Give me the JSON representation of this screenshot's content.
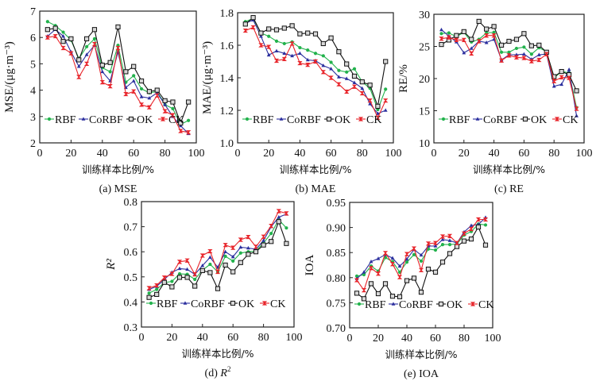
{
  "series_names": [
    "RBF",
    "CoRBF",
    "OK",
    "CK"
  ],
  "series_colors": {
    "RBF": "#22b24c",
    "CoRBF": "#2b2f9e",
    "OK": "#111111",
    "CK": "#e8252b"
  },
  "chart_data": [
    {
      "id": "mse",
      "type": "line",
      "caption_prefix": "(a) ",
      "caption_main": "MSE",
      "caption_italic": false,
      "caption_sup": "",
      "title": "(a) MSE",
      "xlabel": "训练样本比例/%",
      "ylabel": "MSE/(μg·m⁻³)",
      "xlim": [
        0,
        100
      ],
      "ylim": [
        2,
        7
      ],
      "xticks": [
        0,
        20,
        40,
        60,
        80,
        100
      ],
      "yticks": [
        2,
        3,
        4,
        5,
        6,
        7
      ],
      "ytick_labels": [
        "2",
        "3",
        "4",
        "5",
        "6",
        "7"
      ],
      "legend_position": "bottom-left",
      "x": [
        5,
        10,
        15,
        20,
        25,
        30,
        35,
        40,
        45,
        50,
        55,
        60,
        65,
        70,
        75,
        80,
        85,
        90,
        95
      ],
      "series": [
        {
          "name": "RBF",
          "values": [
            6.6,
            6.45,
            6.2,
            5.9,
            5.2,
            5.65,
            5.95,
            4.85,
            4.7,
            5.7,
            4.3,
            4.55,
            4.05,
            3.9,
            3.95,
            3.45,
            3.3,
            2.7,
            2.85
          ]
        },
        {
          "name": "CoRBF",
          "values": [
            6.05,
            6.3,
            6.05,
            5.45,
            4.9,
            5.35,
            5.7,
            4.7,
            4.35,
            5.45,
            4.1,
            4.35,
            3.75,
            3.7,
            3.9,
            3.45,
            3.0,
            2.65,
            2.35
          ]
        },
        {
          "name": "OK",
          "values": [
            6.3,
            6.35,
            5.85,
            5.95,
            5.15,
            5.95,
            6.3,
            4.95,
            5.05,
            6.4,
            4.7,
            4.9,
            4.35,
            3.95,
            4.0,
            3.6,
            3.55,
            2.75,
            3.55
          ]
        },
        {
          "name": "CK",
          "values": [
            6.0,
            6.05,
            5.6,
            5.4,
            4.5,
            5.0,
            5.75,
            4.3,
            4.15,
            5.6,
            3.85,
            3.95,
            3.45,
            3.35,
            3.8,
            3.2,
            3.05,
            2.45,
            2.4
          ]
        }
      ]
    },
    {
      "id": "mae",
      "type": "line",
      "caption_prefix": "(b) ",
      "caption_main": "MAE",
      "caption_italic": false,
      "caption_sup": "",
      "title": "(b) MAE",
      "xlabel": "训练样本比例/%",
      "ylabel": "MAE/(μg·m⁻³)",
      "xlim": [
        0,
        100
      ],
      "ylim": [
        1.0,
        1.8
      ],
      "xticks": [
        0,
        20,
        40,
        60,
        80,
        100
      ],
      "yticks": [
        1.0,
        1.2,
        1.4,
        1.6,
        1.8
      ],
      "ytick_labels": [
        "1.0",
        "1.2",
        "1.4",
        "1.6",
        "1.8"
      ],
      "legend_position": "bottom-left",
      "x": [
        5,
        10,
        15,
        20,
        25,
        30,
        35,
        40,
        45,
        50,
        55,
        60,
        65,
        70,
        75,
        80,
        85,
        90,
        95
      ],
      "series": [
        {
          "name": "RBF",
          "values": [
            1.745,
            1.765,
            1.675,
            1.655,
            1.625,
            1.61,
            1.62,
            1.585,
            1.57,
            1.55,
            1.535,
            1.495,
            1.445,
            1.435,
            1.455,
            1.375,
            1.335,
            1.205,
            1.33
          ]
        },
        {
          "name": "CoRBF",
          "values": [
            1.735,
            1.755,
            1.655,
            1.54,
            1.565,
            1.55,
            1.535,
            1.55,
            1.51,
            1.505,
            1.475,
            1.455,
            1.405,
            1.395,
            1.37,
            1.335,
            1.24,
            1.18,
            1.2
          ]
        },
        {
          "name": "OK",
          "values": [
            1.73,
            1.77,
            1.675,
            1.7,
            1.695,
            1.705,
            1.72,
            1.67,
            1.675,
            1.67,
            1.61,
            1.645,
            1.56,
            1.485,
            1.41,
            1.375,
            1.355,
            1.225,
            1.5
          ]
        },
        {
          "name": "CK",
          "values": [
            1.69,
            1.71,
            1.6,
            1.59,
            1.505,
            1.515,
            1.61,
            1.49,
            1.48,
            1.5,
            1.435,
            1.4,
            1.36,
            1.315,
            1.345,
            1.305,
            1.26,
            1.155,
            1.26
          ]
        }
      ]
    },
    {
      "id": "re",
      "type": "line",
      "caption_prefix": "(c) ",
      "caption_main": "RE",
      "caption_italic": false,
      "caption_sup": "",
      "title": "(c) RE",
      "xlabel": "训练样本比例/%",
      "ylabel": "RE/%",
      "xlim": [
        0,
        100
      ],
      "ylim": [
        10,
        30
      ],
      "xticks": [
        0,
        20,
        40,
        60,
        80,
        100
      ],
      "yticks": [
        10,
        15,
        20,
        25,
        30
      ],
      "ytick_labels": [
        "10",
        "15",
        "20",
        "25",
        "30"
      ],
      "legend_position": "bottom-left",
      "x": [
        5,
        10,
        15,
        20,
        25,
        30,
        35,
        40,
        45,
        50,
        55,
        60,
        65,
        70,
        75,
        80,
        85,
        90,
        95
      ],
      "series": [
        {
          "name": "RBF",
          "values": [
            27.0,
            27.1,
            26.5,
            27.2,
            25.7,
            26.1,
            27.1,
            27.2,
            24.1,
            24.1,
            24.7,
            24.9,
            23.8,
            24.8,
            24.2,
            20.1,
            21.1,
            20.9,
            15.5
          ]
        },
        {
          "name": "CoRBF",
          "values": [
            27.6,
            26.6,
            25.7,
            24.0,
            24.7,
            25.8,
            25.6,
            26.1,
            22.9,
            23.7,
            23.7,
            23.8,
            23.0,
            23.7,
            23.8,
            18.8,
            19.1,
            21.4,
            14.2
          ]
        },
        {
          "name": "OK",
          "values": [
            25.3,
            26.0,
            26.7,
            27.3,
            26.1,
            28.9,
            27.7,
            28.1,
            25.2,
            25.8,
            26.1,
            27.0,
            25.1,
            25.2,
            24.1,
            20.3,
            21.1,
            20.6,
            18.1
          ]
        },
        {
          "name": "CK",
          "values": [
            26.2,
            26.4,
            26.0,
            26.0,
            23.9,
            25.8,
            26.7,
            26.7,
            22.8,
            23.6,
            23.3,
            23.2,
            22.7,
            22.9,
            23.8,
            19.6,
            20.2,
            20.1,
            15.3
          ]
        }
      ]
    },
    {
      "id": "r2",
      "type": "line",
      "caption_prefix": "(d) ",
      "caption_main": "R",
      "caption_italic": true,
      "caption_sup": "2",
      "title": "(d) R²",
      "xlabel": "训练样本比例/%",
      "ylabel": "R²",
      "xlim": [
        0,
        100
      ],
      "ylim": [
        0.3,
        0.8
      ],
      "xticks": [
        0,
        20,
        40,
        60,
        80,
        100
      ],
      "yticks": [
        0.3,
        0.4,
        0.5,
        0.6,
        0.7,
        0.8
      ],
      "ytick_labels": [
        "0.3",
        "0.4",
        "0.5",
        "0.6",
        "0.7",
        "0.8"
      ],
      "legend_position": "bottom-left",
      "x": [
        5,
        10,
        15,
        20,
        25,
        30,
        35,
        40,
        45,
        50,
        55,
        60,
        65,
        70,
        75,
        80,
        85,
        90,
        95
      ],
      "series": [
        {
          "name": "RBF",
          "values": [
            0.435,
            0.45,
            0.477,
            0.482,
            0.512,
            0.51,
            0.49,
            0.527,
            0.55,
            0.52,
            0.582,
            0.563,
            0.595,
            0.6,
            0.603,
            0.635,
            0.673,
            0.728,
            0.695
          ]
        },
        {
          "name": "CoRBF",
          "values": [
            0.45,
            0.462,
            0.49,
            0.518,
            0.533,
            0.53,
            0.51,
            0.545,
            0.578,
            0.538,
            0.6,
            0.58,
            0.618,
            0.615,
            0.61,
            0.645,
            0.7,
            0.738,
            0.75
          ]
        },
        {
          "name": "OK",
          "values": [
            0.418,
            0.43,
            0.478,
            0.46,
            0.498,
            0.498,
            0.463,
            0.525,
            0.517,
            0.453,
            0.547,
            0.52,
            0.557,
            0.59,
            0.6,
            0.627,
            0.641,
            0.72,
            0.633
          ]
        },
        {
          "name": "CK",
          "values": [
            0.455,
            0.466,
            0.497,
            0.512,
            0.56,
            0.565,
            0.51,
            0.585,
            0.602,
            0.52,
            0.627,
            0.616,
            0.648,
            0.659,
            0.62,
            0.66,
            0.703,
            0.762,
            0.753
          ]
        }
      ]
    },
    {
      "id": "ioa",
      "type": "line",
      "caption_prefix": "(e) ",
      "caption_main": "IOA",
      "caption_italic": false,
      "caption_sup": "",
      "title": "(e) IOA",
      "xlabel": "训练样本比例/%",
      "ylabel": "IOA",
      "xlim": [
        0,
        100
      ],
      "ylim": [
        0.7,
        0.95
      ],
      "xticks": [
        0,
        20,
        40,
        60,
        80,
        100
      ],
      "yticks": [
        0.7,
        0.75,
        0.8,
        0.85,
        0.9,
        0.95
      ],
      "ytick_labels": [
        "0.70",
        "0.75",
        "0.80",
        "0.85",
        "0.90",
        "0.95"
      ],
      "legend_position": "bottom-left",
      "x": [
        5,
        10,
        15,
        20,
        25,
        30,
        35,
        40,
        45,
        50,
        55,
        60,
        65,
        70,
        75,
        80,
        85,
        90,
        95
      ],
      "series": [
        {
          "name": "RBF",
          "values": [
            0.803,
            0.806,
            0.823,
            0.813,
            0.84,
            0.832,
            0.811,
            0.831,
            0.846,
            0.833,
            0.857,
            0.855,
            0.866,
            0.866,
            0.867,
            0.885,
            0.892,
            0.907,
            0.905
          ]
        },
        {
          "name": "CoRBF",
          "values": [
            0.798,
            0.811,
            0.832,
            0.838,
            0.846,
            0.839,
            0.823,
            0.837,
            0.856,
            0.845,
            0.863,
            0.863,
            0.876,
            0.874,
            0.869,
            0.891,
            0.904,
            0.906,
            0.92
          ]
        },
        {
          "name": "OK",
          "values": [
            0.769,
            0.758,
            0.788,
            0.768,
            0.788,
            0.763,
            0.762,
            0.794,
            0.799,
            0.771,
            0.817,
            0.811,
            0.831,
            0.848,
            0.862,
            0.873,
            0.877,
            0.901,
            0.865
          ]
        },
        {
          "name": "CK",
          "values": [
            0.795,
            0.775,
            0.819,
            0.808,
            0.849,
            0.827,
            0.801,
            0.847,
            0.858,
            0.815,
            0.868,
            0.869,
            0.882,
            0.883,
            0.869,
            0.888,
            0.897,
            0.916,
            0.916
          ]
        }
      ]
    }
  ]
}
